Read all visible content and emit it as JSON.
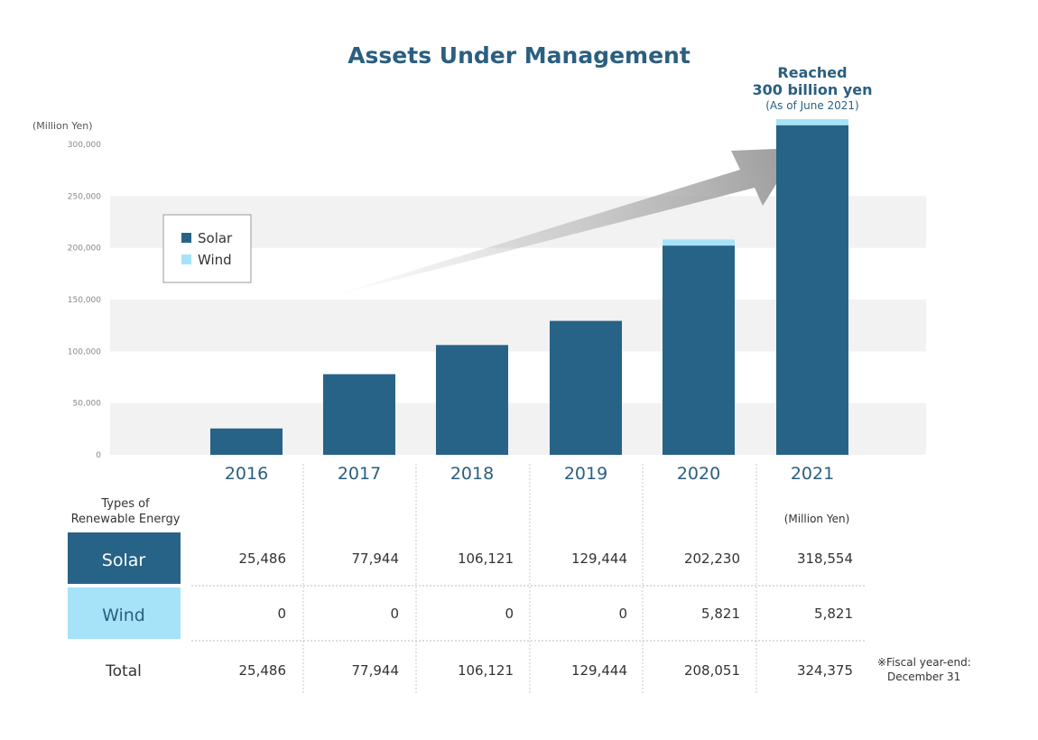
{
  "chart_data": {
    "type": "bar",
    "stacked": true,
    "title": "Assets Under Management",
    "ylabel": "(Million Yen)",
    "ylim": [
      0,
      300000
    ],
    "yticks": [
      "0",
      "50,000",
      "100,000",
      "150,000",
      "200,000",
      "250,000",
      "300,000"
    ],
    "ytick_values": [
      0,
      50000,
      100000,
      150000,
      200000,
      250000,
      300000
    ],
    "categories": [
      "2016",
      "2017",
      "2018",
      "2019",
      "2020",
      "2021"
    ],
    "series": [
      {
        "name": "Solar",
        "values": [
          25486,
          77944,
          106121,
          129444,
          202230,
          318554
        ],
        "color": "#276386"
      },
      {
        "name": "Wind",
        "values": [
          0,
          0,
          0,
          0,
          5821,
          5821
        ],
        "color": "#a6e2f8"
      }
    ],
    "legend": {
      "position": "top-left",
      "items": [
        "Solar",
        "Wind"
      ]
    },
    "grid": "alternating horizontal bands",
    "annotation": {
      "line1": "Reached",
      "line2": "300 billion yen",
      "line3": "(As of June 2021)"
    }
  },
  "table": {
    "header_label_line1": "Types of",
    "header_label_line2": "Renewable Energy",
    "unit": "(Million Yen)",
    "rows": [
      {
        "label": "Solar",
        "cells": [
          "25,486",
          "77,944",
          "106,121",
          "129,444",
          "202,230",
          "318,554"
        ]
      },
      {
        "label": "Wind",
        "cells": [
          "0",
          "0",
          "0",
          "0",
          "5,821",
          "5,821"
        ]
      },
      {
        "label": "Total",
        "cells": [
          "25,486",
          "77,944",
          "106,121",
          "129,444",
          "208,051",
          "324,375"
        ]
      }
    ],
    "footnote_line1": "※Fiscal year-end:",
    "footnote_line2": "December 31"
  },
  "colors": {
    "solar": "#276386",
    "wind": "#a6e2f8",
    "accent_text": "#2b5f80",
    "band": "#f2f2f2"
  }
}
